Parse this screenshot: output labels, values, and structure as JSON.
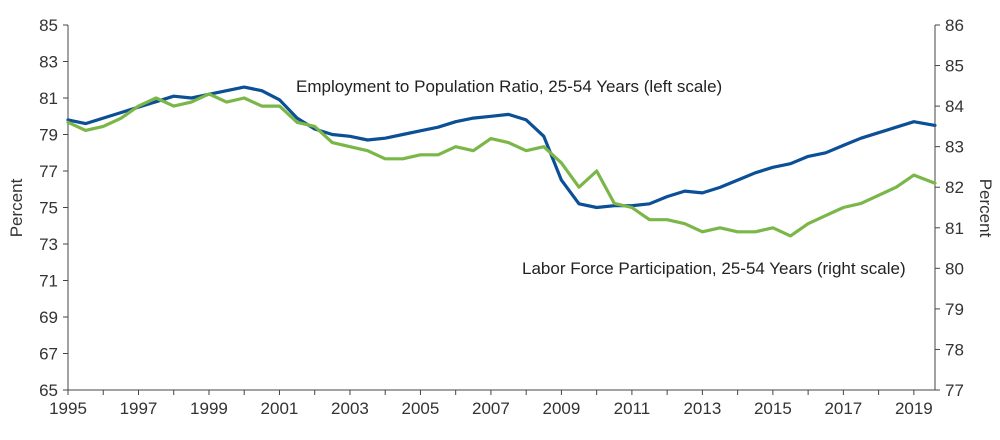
{
  "chart_data": {
    "type": "line",
    "title": "",
    "xlabel": "",
    "ylabel_left": "Percent",
    "ylabel_right": "Percent",
    "x_ticks": [
      "1995",
      "1997",
      "1999",
      "2001",
      "2003",
      "2005",
      "2007",
      "2009",
      "2011",
      "2013",
      "2015",
      "2017",
      "2019"
    ],
    "x_range": [
      1995,
      2019.6
    ],
    "y_left": {
      "range": [
        65,
        85
      ],
      "ticks": [
        "65",
        "67",
        "69",
        "71",
        "73",
        "75",
        "77",
        "79",
        "81",
        "83",
        "85"
      ]
    },
    "y_right": {
      "range": [
        77,
        86
      ],
      "ticks": [
        "77",
        "78",
        "79",
        "80",
        "81",
        "82",
        "83",
        "84",
        "85",
        "86"
      ]
    },
    "grid": false,
    "series": [
      {
        "name": "Employment to Population Ratio, 25-54 Years (left scale)",
        "axis": "left",
        "color": "#0b4f96",
        "x": [
          1995,
          1995.5,
          1996,
          1996.5,
          1997,
          1997.5,
          1998,
          1998.5,
          1999,
          1999.5,
          2000,
          2000.5,
          2001,
          2001.5,
          2002,
          2002.5,
          2003,
          2003.5,
          2004,
          2004.5,
          2005,
          2005.5,
          2006,
          2006.5,
          2007,
          2007.5,
          2008,
          2008.5,
          2009,
          2009.5,
          2010,
          2010.5,
          2011,
          2011.5,
          2012,
          2012.5,
          2013,
          2013.5,
          2014,
          2014.5,
          2015,
          2015.5,
          2016,
          2016.5,
          2017,
          2017.5,
          2018,
          2018.5,
          2019,
          2019.6
        ],
        "values": [
          79.8,
          79.6,
          79.9,
          80.2,
          80.5,
          80.8,
          81.1,
          81.0,
          81.2,
          81.4,
          81.6,
          81.4,
          80.9,
          79.9,
          79.3,
          79.0,
          78.9,
          78.7,
          78.8,
          79.0,
          79.2,
          79.4,
          79.7,
          79.9,
          80.0,
          80.1,
          79.8,
          78.9,
          76.5,
          75.2,
          75.0,
          75.1,
          75.1,
          75.2,
          75.6,
          75.9,
          75.8,
          76.1,
          76.5,
          76.9,
          77.2,
          77.4,
          77.8,
          78.0,
          78.4,
          78.8,
          79.1,
          79.4,
          79.7,
          79.5
        ]
      },
      {
        "name": "Labor Force Participation, 25-54 Years (right scale)",
        "axis": "right",
        "color": "#7ab648",
        "x": [
          1995,
          1995.5,
          1996,
          1996.5,
          1997,
          1997.5,
          1998,
          1998.5,
          1999,
          1999.5,
          2000,
          2000.5,
          2001,
          2001.5,
          2002,
          2002.5,
          2003,
          2003.5,
          2004,
          2004.5,
          2005,
          2005.5,
          2006,
          2006.5,
          2007,
          2007.5,
          2008,
          2008.5,
          2009,
          2009.5,
          2010,
          2010.5,
          2011,
          2011.5,
          2012,
          2012.5,
          2013,
          2013.5,
          2014,
          2014.5,
          2015,
          2015.5,
          2016,
          2016.5,
          2017,
          2017.5,
          2018,
          2018.5,
          2019,
          2019.6
        ],
        "values": [
          83.6,
          83.4,
          83.5,
          83.7,
          84.0,
          84.2,
          84.0,
          84.1,
          84.3,
          84.1,
          84.2,
          84.0,
          84.0,
          83.6,
          83.5,
          83.1,
          83.0,
          82.9,
          82.7,
          82.7,
          82.8,
          82.8,
          83.0,
          82.9,
          83.2,
          83.1,
          82.9,
          83.0,
          82.6,
          82.0,
          82.4,
          81.6,
          81.5,
          81.2,
          81.2,
          81.1,
          80.9,
          81.0,
          80.9,
          80.9,
          81.0,
          80.8,
          81.1,
          81.3,
          81.5,
          81.6,
          81.8,
          82.0,
          82.3,
          82.1
        ]
      }
    ]
  }
}
